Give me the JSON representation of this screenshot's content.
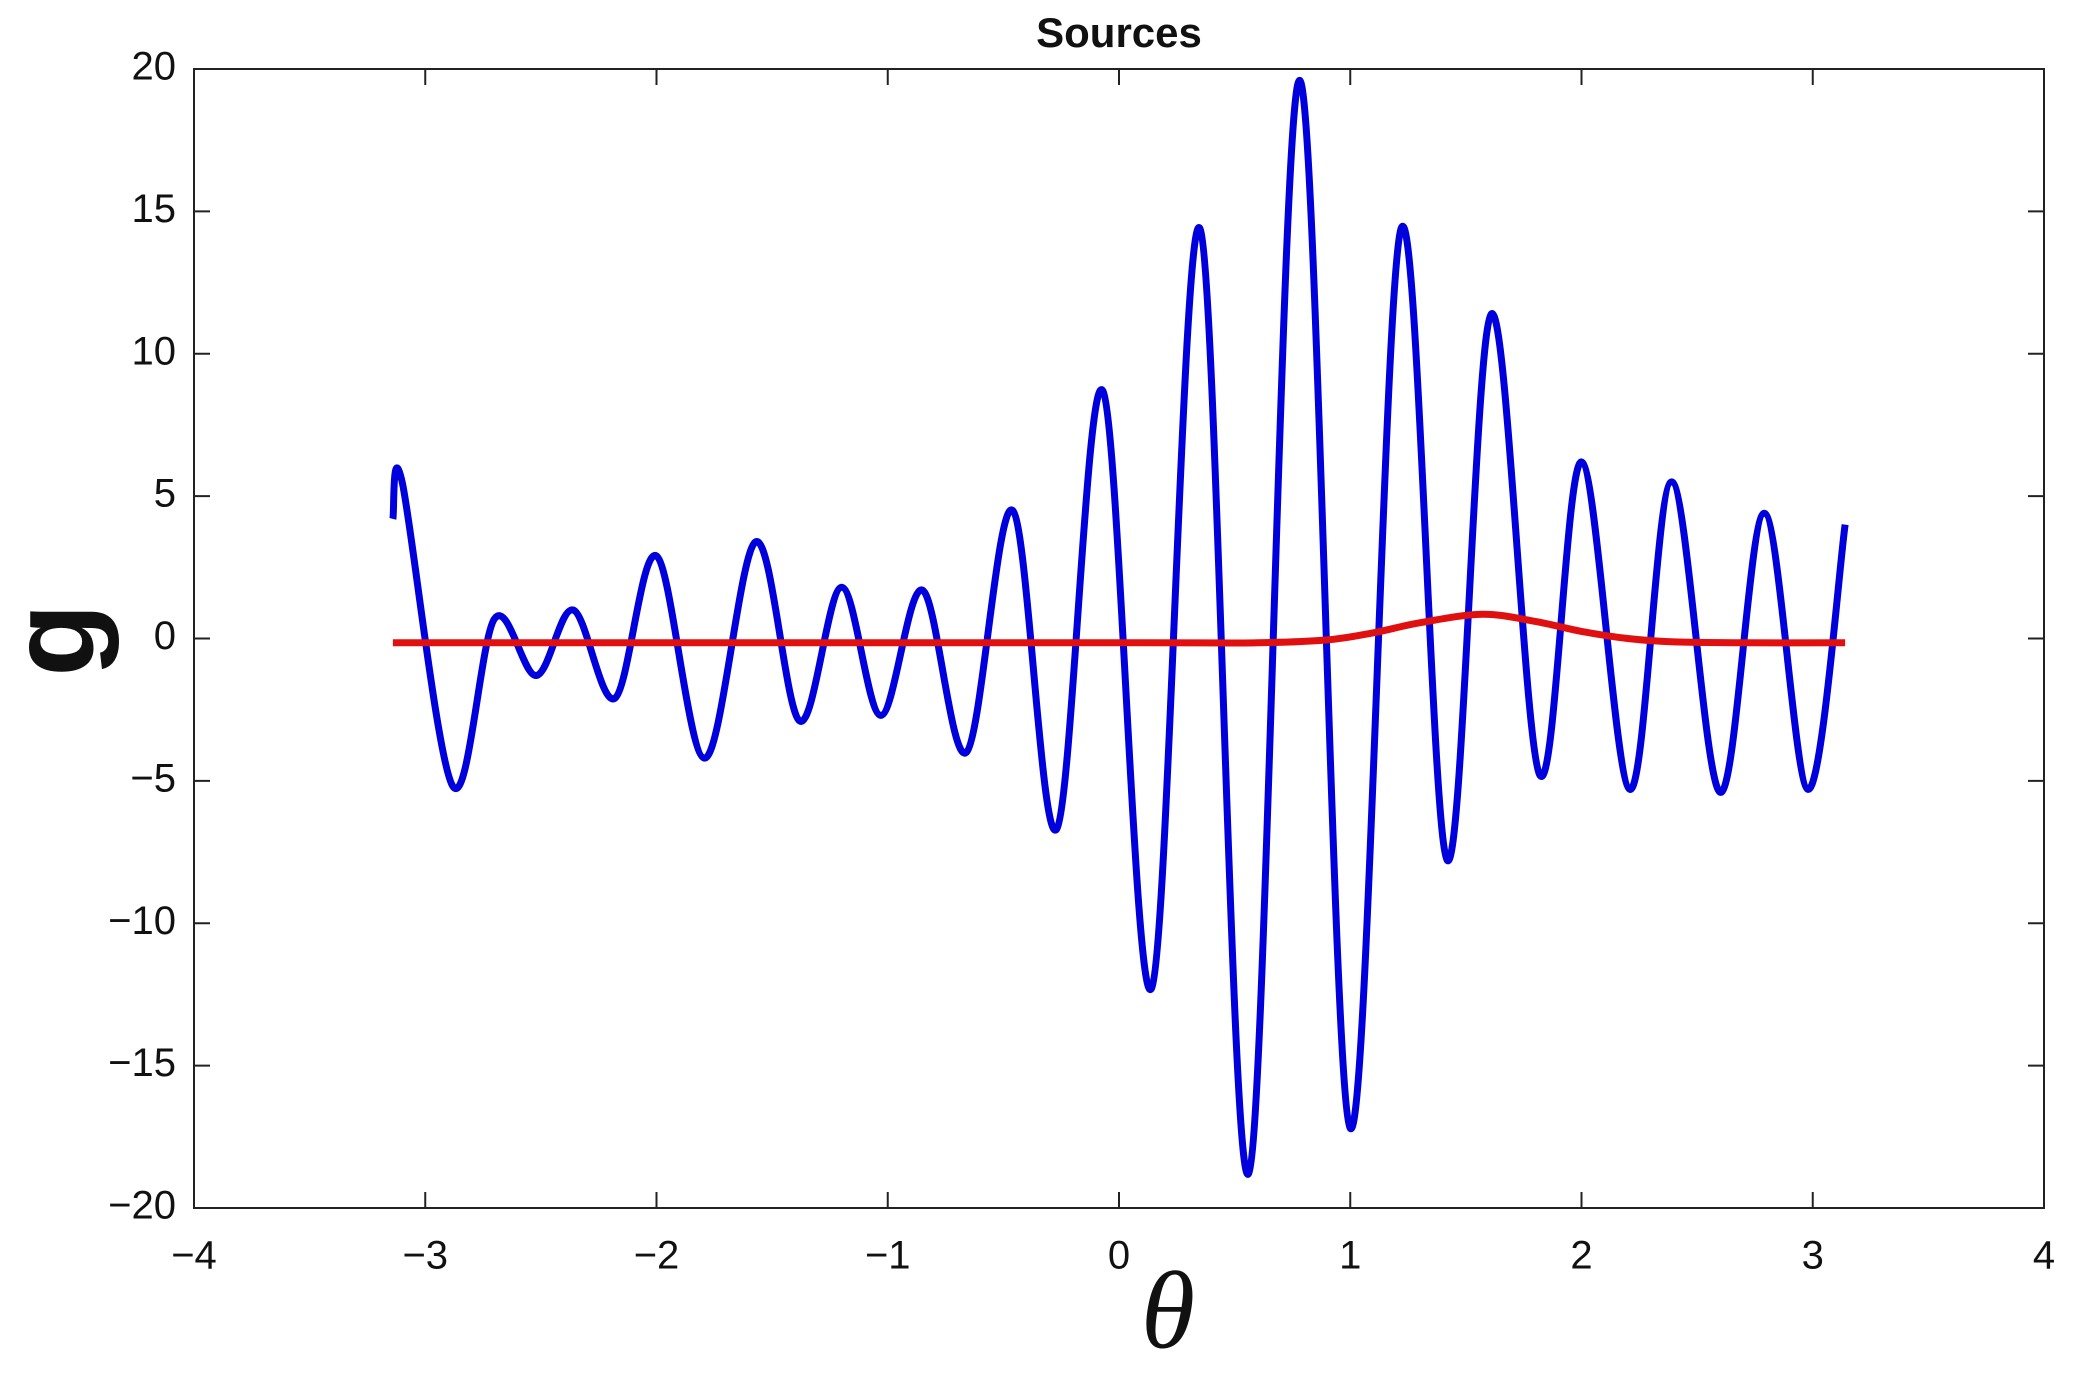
{
  "chart_data": {
    "type": "line",
    "title": "Sources",
    "x_label": "θ",
    "y_label": "g",
    "series": [
      {
        "color": "#0000dd",
        "x": [
          -3.14,
          -3.1,
          -2.88,
          -2.7,
          -2.52,
          -2.36,
          -2.18,
          -2.0,
          -1.79,
          -1.57,
          -1.38,
          -1.2,
          -1.03,
          -0.85,
          -0.66,
          -0.46,
          -0.27,
          -0.07,
          0.14,
          0.35,
          0.56,
          0.78,
          1.0,
          1.22,
          1.42,
          1.61,
          1.82,
          2.0,
          2.21,
          2.39,
          2.6,
          2.79,
          2.98,
          3.14
        ],
        "values": [
          4.2,
          5.5,
          -5.2,
          0.7,
          -1.3,
          1.0,
          -2.1,
          2.9,
          -4.2,
          3.4,
          -2.9,
          1.8,
          -2.7,
          1.7,
          -4.0,
          4.5,
          -6.7,
          8.7,
          -12.3,
          14.4,
          -18.8,
          19.6,
          -17.2,
          14.4,
          -7.8,
          11.4,
          -4.8,
          6.2,
          -5.3,
          5.5,
          -5.4,
          4.4,
          -5.3,
          4.0
        ]
      },
      {
        "color": "#e01010",
        "x": [
          -3.14,
          0,
          0.6,
          0.9,
          1.1,
          1.3,
          1.57,
          1.8,
          2.0,
          2.2,
          2.4,
          2.7,
          3.14
        ],
        "values": [
          -0.15,
          -0.15,
          -0.15,
          -0.05,
          0.2,
          0.55,
          0.85,
          0.6,
          0.25,
          0.0,
          -0.12,
          -0.15,
          -0.15
        ]
      }
    ],
    "xlim": [
      -4,
      4
    ],
    "xticks": [
      {
        "value": -4,
        "label": "−4"
      },
      {
        "value": -3,
        "label": "−3"
      },
      {
        "value": -2,
        "label": "−2"
      },
      {
        "value": -1,
        "label": "−1"
      },
      0,
      1,
      2,
      3,
      4
    ],
    "ylim": [
      -20,
      20
    ],
    "yticks": [
      {
        "value": -20,
        "label": "−20"
      },
      {
        "value": -15,
        "label": "−15"
      },
      {
        "value": -10,
        "label": "−10"
      },
      {
        "value": -5,
        "label": "−5"
      },
      0,
      5,
      10,
      15,
      20
    ],
    "grid": false
  }
}
